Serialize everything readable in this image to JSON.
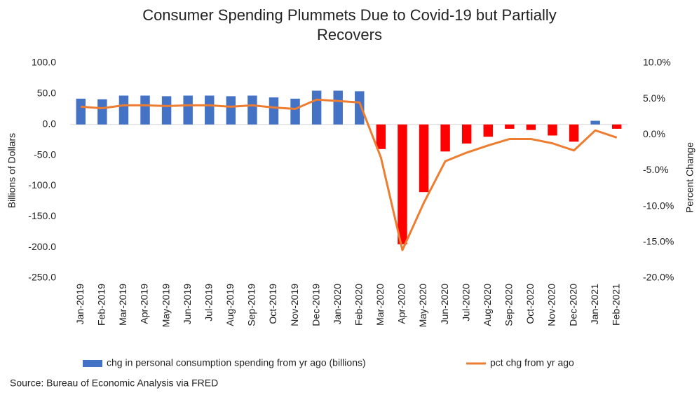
{
  "chart_data": {
    "type": "bar_line",
    "title": "Consumer Spending Plummets Due to Covid-19 but Partially Recovers",
    "y_label": "Billions of Dollars",
    "y2_label": "Percent Change",
    "source": "Source: Bureau of Economic Analysis via FRED",
    "categories": [
      "Jan-2019",
      "Feb-2019",
      "Mar-2019",
      "Apr-2019",
      "May-2019",
      "Jun-2019",
      "Jul-2019",
      "Aug-2019",
      "Sep-2019",
      "Oct-2019",
      "Nov-2019",
      "Dec-2019",
      "Jan-2020",
      "Feb-2020",
      "Mar-2020",
      "Apr-2020",
      "May-2020",
      "Jun-2020",
      "Jul-2020",
      "Aug-2020",
      "Sep-2020",
      "Oct-2020",
      "Nov-2020",
      "Dec-2020",
      "Jan-2021",
      "Feb-2021"
    ],
    "series": [
      {
        "name": "chg in personal consumption spending from yr ago (billions)",
        "kind": "bar",
        "color": "#4472c4",
        "negative_color": "#ff0000",
        "values": [
          42,
          41,
          47,
          47,
          46,
          47,
          47,
          46,
          47,
          44,
          42,
          55,
          55,
          54,
          -40,
          -195,
          -110,
          -44,
          -31,
          -20,
          -7,
          -9,
          -18,
          -28,
          6,
          -7
        ]
      },
      {
        "name": "pct chg from yr ago",
        "kind": "line",
        "axis": "y2",
        "color": "#ed7d31",
        "values": [
          3.9,
          3.7,
          4.1,
          4.1,
          4.0,
          4.1,
          4.1,
          3.9,
          4.1,
          3.8,
          3.6,
          4.9,
          4.7,
          4.5,
          -3.2,
          -16.1,
          -9.5,
          -3.7,
          -2.5,
          -1.5,
          -0.6,
          -0.6,
          -1.2,
          -2.2,
          0.6,
          -0.4
        ]
      }
    ],
    "ylim": [
      -250,
      100
    ],
    "yticks": [
      {
        "value": -250,
        "label": "-250.0"
      },
      {
        "value": -200,
        "label": "-200.0"
      },
      {
        "value": -150,
        "label": "-150.0"
      },
      {
        "value": -100,
        "label": "-100.0"
      },
      {
        "value": -50,
        "label": "-50.0"
      },
      {
        "value": 0,
        "label": "0.0"
      },
      {
        "value": 50,
        "label": "50.0"
      },
      {
        "value": 100,
        "label": "100.0"
      }
    ],
    "y2lim": [
      -20,
      10
    ],
    "y2ticks": [
      {
        "value": -20,
        "label": "-20.0%"
      },
      {
        "value": -15,
        "label": "-15.0%"
      },
      {
        "value": -10,
        "label": "-10.0%"
      },
      {
        "value": -5,
        "label": "-5.0%"
      },
      {
        "value": 0,
        "label": "0.0%"
      },
      {
        "value": 5,
        "label": "5.0%"
      },
      {
        "value": 10,
        "label": "10.0%"
      }
    ],
    "grid": false,
    "legend": "bottom"
  }
}
